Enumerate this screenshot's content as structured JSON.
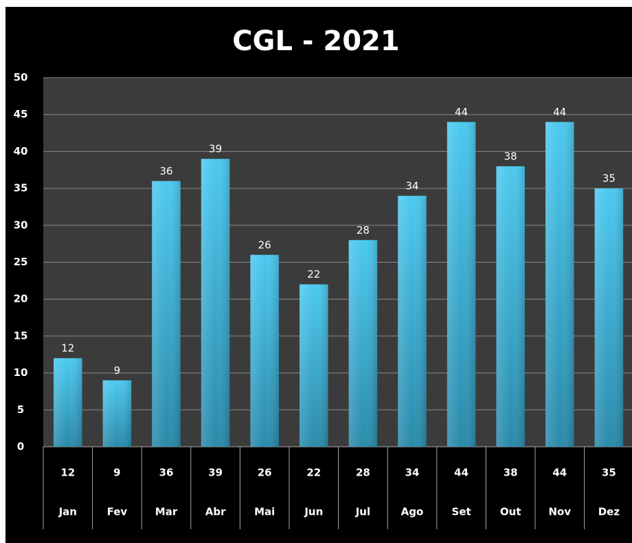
{
  "chart_data": {
    "type": "bar",
    "title": "CGL - 2021",
    "categories": [
      "Jan",
      "Fev",
      "Mar",
      "Abr",
      "Mai",
      "Jun",
      "Jul",
      "Ago",
      "Set",
      "Out",
      "Nov",
      "Dez"
    ],
    "values": [
      12,
      9,
      36,
      39,
      26,
      22,
      28,
      34,
      44,
      38,
      44,
      35
    ],
    "color": "#3fbfe6",
    "ylim": [
      0,
      50
    ],
    "yticks": [
      0,
      5,
      10,
      15,
      20,
      25,
      30,
      35,
      40,
      45,
      50
    ],
    "grid": true
  }
}
